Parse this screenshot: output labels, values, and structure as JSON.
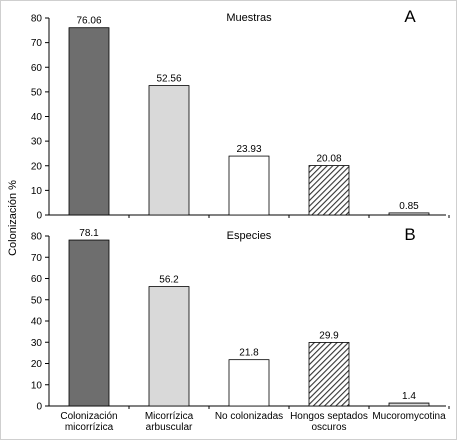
{
  "figure": {
    "ylabel": "Colonización %",
    "categories": [
      "Colonización micorrízica",
      "Micorrízica arbuscular",
      "No colonizadas",
      "Hongos septados oscuros",
      "Mucoromycotina"
    ],
    "category_lines": [
      [
        "Colonización",
        "micorrízica"
      ],
      [
        "Micorrízica",
        "arbuscular"
      ],
      [
        "No colonizadas"
      ],
      [
        "Hongos septados",
        "oscuros"
      ],
      [
        "Mucoromycotina"
      ]
    ]
  },
  "chart_data": [
    {
      "type": "bar",
      "panel_letter": "A",
      "title": "Muestras",
      "categories": [
        "Colonización micorrízica",
        "Micorrízica arbuscular",
        "No colonizadas",
        "Hongos septados oscuros",
        "Mucoromycotina"
      ],
      "values": [
        76.06,
        52.56,
        23.93,
        20.08,
        0.85
      ],
      "value_labels": [
        "76.06",
        "52.56",
        "23.93",
        "20.08",
        "0.85"
      ],
      "ylim": [
        0,
        80
      ],
      "yticks": [
        0,
        10,
        20,
        30,
        40,
        50,
        60,
        70,
        80
      ],
      "ytick_labels": [
        "0",
        "10",
        "20",
        "30",
        "40",
        "50",
        "60",
        "70",
        "80"
      ],
      "grid": false,
      "colors": [
        "#6e6e6e",
        "#d9d9d9",
        "#ffffff",
        "hatch",
        "#d9d9d9"
      ]
    },
    {
      "type": "bar",
      "panel_letter": "B",
      "title": "Especies",
      "categories": [
        "Colonización micorrízica",
        "Micorrízica arbuscular",
        "No colonizadas",
        "Hongos septados oscuros",
        "Mucoromycotina"
      ],
      "values": [
        78.1,
        56.2,
        21.8,
        29.9,
        1.4
      ],
      "value_labels": [
        "78.1",
        "56.2",
        "21.8",
        "29.9",
        "1.4"
      ],
      "ylim": [
        0,
        80
      ],
      "yticks": [
        0,
        10,
        20,
        30,
        40,
        50,
        60,
        70,
        80
      ],
      "ytick_labels": [
        "0",
        "10",
        "20",
        "30",
        "40",
        "50",
        "60",
        "70",
        "80"
      ],
      "grid": false,
      "colors": [
        "#6e6e6e",
        "#d9d9d9",
        "#ffffff",
        "hatch",
        "#d9d9d9"
      ]
    }
  ]
}
